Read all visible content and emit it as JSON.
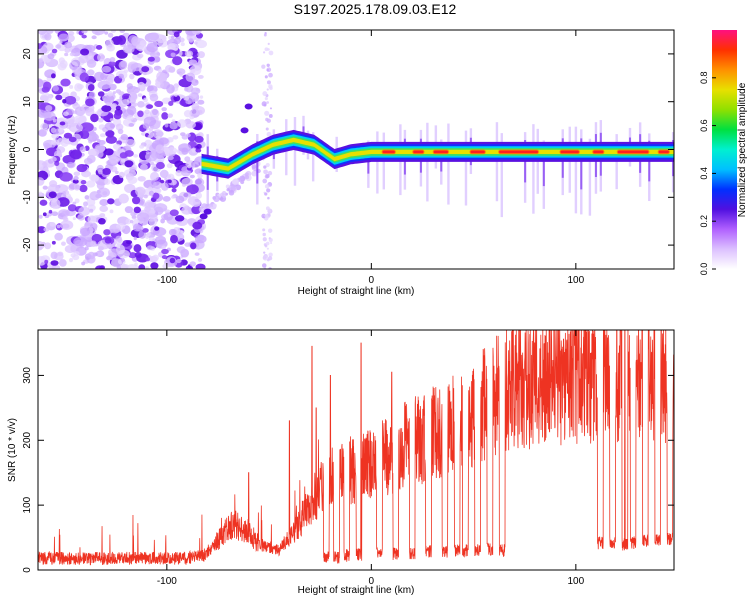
{
  "title": "S197.2025.178.09.03.E12",
  "colors": {
    "snr_line": "#ee3322",
    "axis": "#000000",
    "colormap": [
      "#ffffff",
      "#dcc0ff",
      "#7a2cf0",
      "#4a00e0",
      "#0033ff",
      "#00b0ff",
      "#00e8e0",
      "#00e060",
      "#88e000",
      "#e0e000",
      "#ff8800",
      "#ff2000",
      "#ff1080"
    ]
  },
  "chart_data": [
    {
      "type": "heatmap",
      "title": "S197.2025.178.09.03.E12",
      "xlabel": "Height of straight line (km)",
      "ylabel": "Frequency (Hz)",
      "xlim": [
        -163,
        148
      ],
      "ylim": [
        -25,
        25
      ],
      "x_ticks": [
        "-100",
        "0",
        "100"
      ],
      "y_ticks": [
        "20",
        "10",
        "0",
        "-10",
        "-20"
      ],
      "colorbar": {
        "label": "Normalized spectral amplitude",
        "range": [
          0,
          1
        ],
        "ticks": [
          "0.0",
          "0.2",
          "0.4",
          "0.6",
          "0.8"
        ]
      },
      "features": {
        "noise_region_x": [
          -163,
          -83
        ],
        "rising_track": [
          [
            -83,
            -3
          ],
          [
            -70,
            -4
          ],
          [
            -58,
            -1
          ],
          [
            -48,
            1
          ],
          [
            -38,
            2
          ],
          [
            -28,
            1
          ],
          [
            -18,
            -2
          ],
          [
            -10,
            -1
          ],
          [
            0,
            -0.5
          ]
        ],
        "flat_track_freq": -0.5,
        "flat_track_x": [
          -18,
          148
        ]
      }
    },
    {
      "type": "line",
      "xlabel": "Height of straight line (km)",
      "ylabel": "SNR (10 * v/v)",
      "xlim": [
        -163,
        148
      ],
      "ylim": [
        0,
        370
      ],
      "x_ticks": [
        "-100",
        "0",
        "100"
      ],
      "y_ticks": [
        "0",
        "100",
        "200",
        "300"
      ],
      "series": [
        {
          "envelope": [
            [
              -163,
              18
            ],
            [
              -90,
              18
            ],
            [
              -82,
              22
            ],
            [
              -75,
              45
            ],
            [
              -68,
              70
            ],
            [
              -62,
              65
            ],
            [
              -55,
              40
            ],
            [
              -50,
              35
            ],
            [
              -45,
              30
            ],
            [
              -38,
              60
            ],
            [
              -32,
              90
            ],
            [
              -28,
              110
            ],
            [
              -24,
              130
            ],
            [
              -20,
              140
            ],
            [
              -15,
              150
            ],
            [
              -10,
              155
            ],
            [
              0,
              165
            ],
            [
              8,
              175
            ],
            [
              15,
              190
            ],
            [
              22,
              200
            ],
            [
              30,
              210
            ],
            [
              38,
              220
            ],
            [
              45,
              230
            ],
            [
              52,
              250
            ],
            [
              58,
              265
            ],
            [
              65,
              275
            ],
            [
              75,
              285
            ],
            [
              85,
              290
            ],
            [
              95,
              295
            ],
            [
              105,
              300
            ],
            [
              115,
              298
            ],
            [
              125,
              300
            ],
            [
              135,
              300
            ],
            [
              148,
              300
            ]
          ],
          "dropouts": [
            [
              -22,
              20
            ],
            [
              -17,
              20
            ],
            [
              -12,
              22
            ],
            [
              -6,
              24
            ],
            [
              4,
              25
            ],
            [
              12,
              25
            ],
            [
              20,
              26
            ],
            [
              28,
              28
            ],
            [
              36,
              28
            ],
            [
              42,
              30
            ],
            [
              46,
              30
            ],
            [
              52,
              30
            ],
            [
              58,
              32
            ],
            [
              64,
              30
            ],
            [
              112,
              42
            ],
            [
              118,
              42
            ],
            [
              124,
              40
            ],
            [
              128,
              42
            ],
            [
              134,
              45
            ],
            [
              140,
              45
            ],
            [
              146,
              48
            ]
          ],
          "spikes": [
            [
              -29,
              345
            ],
            [
              -27,
              250
            ],
            [
              -20,
              300
            ],
            [
              -5,
              350
            ],
            [
              10,
              305
            ],
            [
              -40,
              230
            ],
            [
              -60,
              150
            ],
            [
              124,
              370
            ],
            [
              100,
              370
            ],
            [
              93,
              340
            ]
          ]
        }
      ]
    }
  ]
}
